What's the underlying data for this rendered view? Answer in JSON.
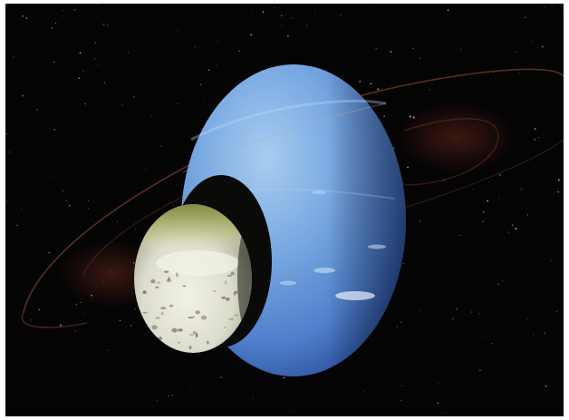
{
  "scene": {
    "subject": "neptune-with-moon-triton",
    "colors": {
      "space": "#050405",
      "neptune_light": "#9cc4ec",
      "neptune_mid": "#5f92d6",
      "neptune_dark": "#1f3f88",
      "ring": "#b55a3c",
      "triton_light": "#efeee2",
      "triton_green": "#8f9552",
      "triton_shadow": "#0a0a08"
    }
  }
}
